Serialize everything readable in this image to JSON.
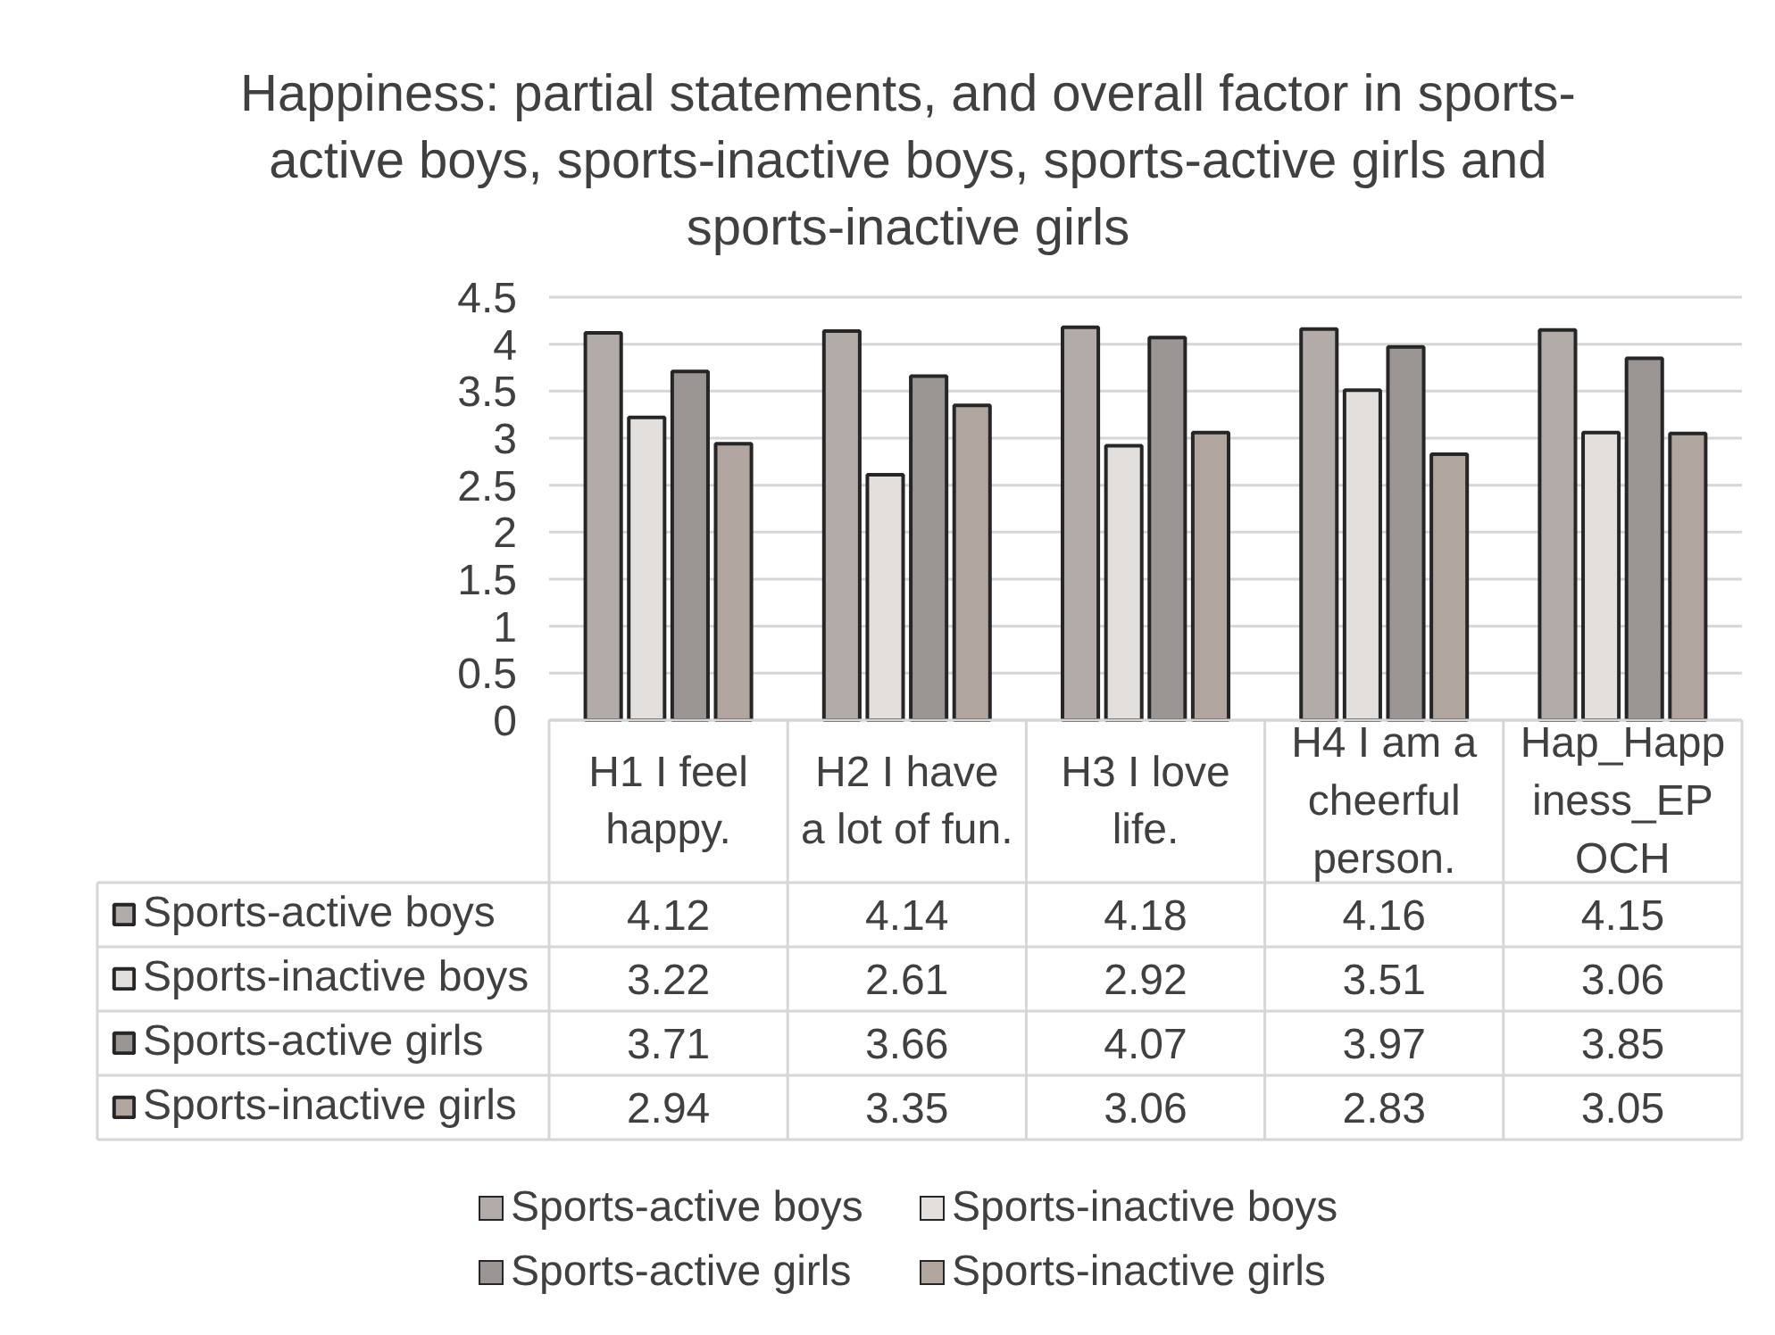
{
  "chart_data": {
    "type": "bar",
    "title": "Happiness: partial statements, and overall factor in sports-active boys, sports-inactive boys, sports-active girls and sports-inactive girls",
    "categories": [
      "H1 I feel happy.",
      "H2 I have a lot of fun.",
      "H3 I love life.",
      "H4 I am a cheerful person.",
      "Hap_Happiness_EPOCH"
    ],
    "series": [
      {
        "name": "Sports-active boys",
        "color": "#b3aba7",
        "values": [
          4.12,
          4.14,
          4.18,
          4.16,
          4.15
        ]
      },
      {
        "name": "Sports-inactive boys",
        "color": "#e3dfdc",
        "values": [
          3.22,
          2.61,
          2.92,
          3.51,
          3.06
        ]
      },
      {
        "name": "Sports-active girls",
        "color": "#9b9593",
        "values": [
          3.71,
          3.66,
          4.07,
          3.97,
          3.85
        ]
      },
      {
        "name": "Sports-inactive girls",
        "color": "#b1a69f",
        "values": [
          2.94,
          3.35,
          3.06,
          2.83,
          3.05
        ]
      }
    ],
    "ylim": [
      0,
      4.5
    ],
    "yticks": [
      0,
      0.5,
      1,
      1.5,
      2,
      2.5,
      3,
      3.5,
      4,
      4.5
    ],
    "grid": "y",
    "legend": "bottom",
    "data_labels": true
  }
}
